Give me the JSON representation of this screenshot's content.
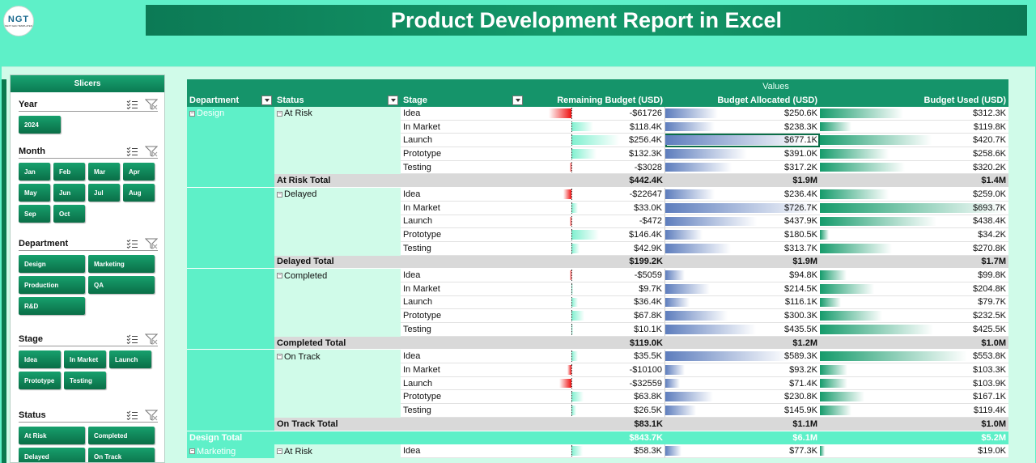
{
  "logo": {
    "text": "NGT",
    "subtext": "NEXT GEN TEMPLATES"
  },
  "title": "Product Development Report in Excel",
  "slicers": {
    "header": "Slicers",
    "groups": [
      {
        "title": "Year",
        "buttons": [
          "2024"
        ]
      },
      {
        "title": "Month",
        "buttons": [
          "Jan",
          "Feb",
          "Mar",
          "Apr",
          "May",
          "Jun",
          "Jul",
          "Aug",
          "Sep",
          "Oct"
        ]
      },
      {
        "title": "Department",
        "buttons": [
          "Design",
          "Marketing",
          "Production",
          "QA",
          "R&D"
        ]
      },
      {
        "title": "Stage",
        "buttons": [
          "Idea",
          "In Market",
          "Launch",
          "Prototype",
          "Testing"
        ]
      },
      {
        "title": "Status",
        "buttons": [
          "At Risk",
          "Completed",
          "Delayed",
          "On Track"
        ]
      }
    ]
  },
  "pivot": {
    "values_label": "Values",
    "headers": {
      "department": "Department",
      "status": "Status",
      "stage": "Stage",
      "remaining": "Remaining Budget (USD)",
      "allocated": "Budget Allocated (USD)",
      "used": "Budget Used (USD)"
    },
    "rows": [
      {
        "type": "data",
        "dept": "Design",
        "status": "At Risk",
        "stage": "Idea",
        "rem": "-$61726",
        "alloc": "$250.6K",
        "used": "$312.3K",
        "remVal": -61726,
        "allocVal": 250.6,
        "usedVal": 312.3
      },
      {
        "type": "data",
        "dept": "",
        "status": "",
        "stage": "In Market",
        "rem": "$118.4K",
        "alloc": "$238.3K",
        "used": "$119.8K",
        "remVal": 118400,
        "allocVal": 238.3,
        "usedVal": 119.8
      },
      {
        "type": "data",
        "dept": "",
        "status": "",
        "stage": "Launch",
        "rem": "$256.4K",
        "alloc": "$677.1K",
        "used": "$420.7K",
        "remVal": 256400,
        "allocVal": 677.1,
        "usedVal": 420.7,
        "selected": true
      },
      {
        "type": "data",
        "dept": "",
        "status": "",
        "stage": "Prototype",
        "rem": "$132.3K",
        "alloc": "$391.0K",
        "used": "$258.6K",
        "remVal": 132300,
        "allocVal": 391.0,
        "usedVal": 258.6
      },
      {
        "type": "data",
        "dept": "",
        "status": "",
        "stage": "Testing",
        "rem": "-$3028",
        "alloc": "$317.2K",
        "used": "$320.2K",
        "remVal": -3028,
        "allocVal": 317.2,
        "usedVal": 320.2
      },
      {
        "type": "total",
        "label": "At Risk Total",
        "rem": "$442.4K",
        "alloc": "$1.9M",
        "used": "$1.4M"
      },
      {
        "type": "data",
        "dept": "",
        "status": "Delayed",
        "stage": "Idea",
        "rem": "-$22647",
        "alloc": "$236.4K",
        "used": "$259.0K",
        "remVal": -22647,
        "allocVal": 236.4,
        "usedVal": 259.0
      },
      {
        "type": "data",
        "dept": "",
        "status": "",
        "stage": "In Market",
        "rem": "$33.0K",
        "alloc": "$726.7K",
        "used": "$693.7K",
        "remVal": 33000,
        "allocVal": 726.7,
        "usedVal": 693.7
      },
      {
        "type": "data",
        "dept": "",
        "status": "",
        "stage": "Launch",
        "rem": "-$472",
        "alloc": "$437.9K",
        "used": "$438.4K",
        "remVal": -472,
        "allocVal": 437.9,
        "usedVal": 438.4
      },
      {
        "type": "data",
        "dept": "",
        "status": "",
        "stage": "Prototype",
        "rem": "$146.4K",
        "alloc": "$180.5K",
        "used": "$34.2K",
        "remVal": 146400,
        "allocVal": 180.5,
        "usedVal": 34.2
      },
      {
        "type": "data",
        "dept": "",
        "status": "",
        "stage": "Testing",
        "rem": "$42.9K",
        "alloc": "$313.7K",
        "used": "$270.8K",
        "remVal": 42900,
        "allocVal": 313.7,
        "usedVal": 270.8
      },
      {
        "type": "total",
        "label": "Delayed Total",
        "rem": "$199.2K",
        "alloc": "$1.9M",
        "used": "$1.7M"
      },
      {
        "type": "data",
        "dept": "",
        "status": "Completed",
        "stage": "Idea",
        "rem": "-$5059",
        "alloc": "$94.8K",
        "used": "$99.8K",
        "remVal": -5059,
        "allocVal": 94.8,
        "usedVal": 99.8
      },
      {
        "type": "data",
        "dept": "",
        "status": "",
        "stage": "In Market",
        "rem": "$9.7K",
        "alloc": "$214.5K",
        "used": "$204.8K",
        "remVal": 9700,
        "allocVal": 214.5,
        "usedVal": 204.8
      },
      {
        "type": "data",
        "dept": "",
        "status": "",
        "stage": "Launch",
        "rem": "$36.4K",
        "alloc": "$116.1K",
        "used": "$79.7K",
        "remVal": 36400,
        "allocVal": 116.1,
        "usedVal": 79.7
      },
      {
        "type": "data",
        "dept": "",
        "status": "",
        "stage": "Prototype",
        "rem": "$67.8K",
        "alloc": "$300.3K",
        "used": "$232.5K",
        "remVal": 67800,
        "allocVal": 300.3,
        "usedVal": 232.5
      },
      {
        "type": "data",
        "dept": "",
        "status": "",
        "stage": "Testing",
        "rem": "$10.1K",
        "alloc": "$435.5K",
        "used": "$425.5K",
        "remVal": 10100,
        "allocVal": 435.5,
        "usedVal": 425.5
      },
      {
        "type": "total",
        "label": "Completed Total",
        "rem": "$119.0K",
        "alloc": "$1.2M",
        "used": "$1.0M"
      },
      {
        "type": "data",
        "dept": "",
        "status": "On Track",
        "stage": "Idea",
        "rem": "$35.5K",
        "alloc": "$589.3K",
        "used": "$553.8K",
        "remVal": 35500,
        "allocVal": 589.3,
        "usedVal": 553.8
      },
      {
        "type": "data",
        "dept": "",
        "status": "",
        "stage": "In Market",
        "rem": "-$10100",
        "alloc": "$93.2K",
        "used": "$103.3K",
        "remVal": -10100,
        "allocVal": 93.2,
        "usedVal": 103.3
      },
      {
        "type": "data",
        "dept": "",
        "status": "",
        "stage": "Launch",
        "rem": "-$32559",
        "alloc": "$71.4K",
        "used": "$103.9K",
        "remVal": -32559,
        "allocVal": 71.4,
        "usedVal": 103.9
      },
      {
        "type": "data",
        "dept": "",
        "status": "",
        "stage": "Prototype",
        "rem": "$63.8K",
        "alloc": "$230.8K",
        "used": "$167.1K",
        "remVal": 63800,
        "allocVal": 230.8,
        "usedVal": 167.1
      },
      {
        "type": "data",
        "dept": "",
        "status": "",
        "stage": "Testing",
        "rem": "$26.5K",
        "alloc": "$145.9K",
        "used": "$119.4K",
        "remVal": 26500,
        "allocVal": 145.9,
        "usedVal": 119.4
      },
      {
        "type": "total",
        "label": "On Track Total",
        "rem": "$83.1K",
        "alloc": "$1.1M",
        "used": "$1.0M"
      },
      {
        "type": "dtotal",
        "label": "Design Total",
        "rem": "$843.7K",
        "alloc": "$6.1M",
        "used": "$5.2M"
      },
      {
        "type": "data",
        "dept": "Marketing",
        "status": "At Risk",
        "stage": "Idea",
        "rem": "$58.3K",
        "alloc": "$77.3K",
        "used": "$19.0K",
        "remVal": 58300,
        "allocVal": 77.3,
        "usedVal": 19.0
      }
    ]
  },
  "colors": {
    "accent": "#15946a",
    "mint": "#5ef0c8",
    "negative": "#ee1111",
    "alloc_bar": "#5d7dbd"
  }
}
